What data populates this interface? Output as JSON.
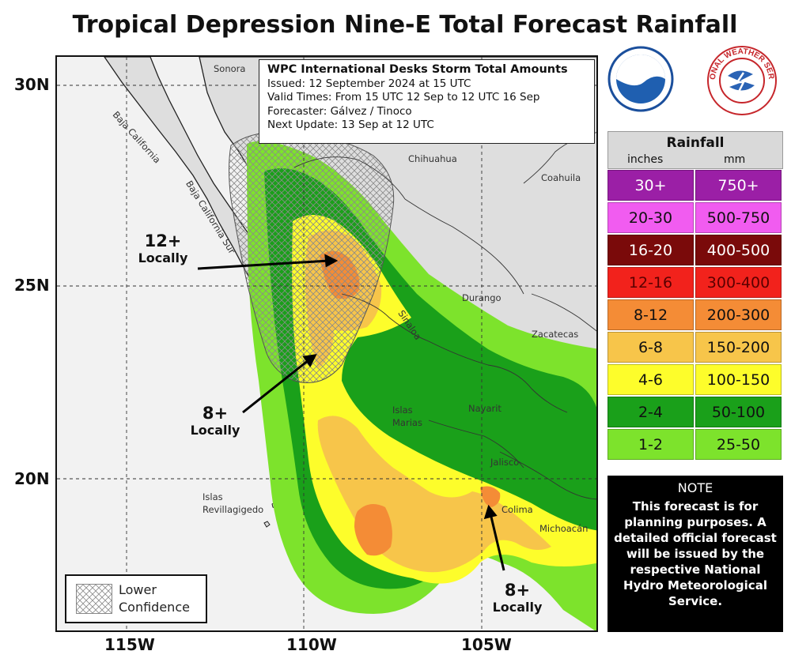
{
  "title": "Tropical Depression Nine-E Total Forecast Rainfall",
  "info": {
    "title": "WPC International Desks Storm Total Amounts",
    "issued": "Issued:  12 September 2024 at 15 UTC",
    "valid": "Valid Times:  From 15 UTC 12 Sep  to  12 UTC 16 Sep",
    "forecaster": "Forecaster: Gálvez / Tinoco",
    "next_update": "Next Update: 13 Sep at 12 UTC"
  },
  "lat_labels": [
    "30N",
    "25N",
    "20N"
  ],
  "lon_labels": [
    "115W",
    "110W",
    "105W"
  ],
  "places": {
    "sonora": "Sonora",
    "baja_california": "Baja California",
    "baja_california_sur": "Baja California Sur",
    "chihuahua": "Chihuahua",
    "coahuila": "Coahuila",
    "durango": "Durango",
    "sinaloa": "Sinaloa",
    "zacatecas": "Zacatecas",
    "nayarit": "Nayarit",
    "islas_marias_1": "Islas",
    "islas_marias_2": "Marias",
    "jalisco": "Jalisco",
    "colima": "Colima",
    "michoacan": "Michoacán",
    "islas_revillagigedo_1": "Islas",
    "islas_revillagigedo_2": "Revillagigedo"
  },
  "callouts": [
    {
      "amount": "12+",
      "locally": "Locally"
    },
    {
      "amount": "8+",
      "locally": "Locally"
    },
    {
      "amount": "8+",
      "locally": "Locally"
    }
  ],
  "confidence_legend": {
    "line1": "Lower",
    "line2": "Confidence"
  },
  "legend": {
    "title": "Rainfall",
    "inches_label": "inches",
    "mm_label": "mm",
    "rows": [
      {
        "inches": "30+",
        "mm": "750+",
        "color": "#9b1fa6",
        "text_color": "#ffffff"
      },
      {
        "inches": "20-30",
        "mm": "500-750",
        "color": "#f15cf0",
        "text_color": "#111111"
      },
      {
        "inches": "16-20",
        "mm": "400-500",
        "color": "#7a0a0a",
        "text_color": "#ffffff"
      },
      {
        "inches": "12-16",
        "mm": "300-400",
        "color": "#f2221c",
        "text_color": "#5a0000"
      },
      {
        "inches": "8-12",
        "mm": "200-300",
        "color": "#f48c36",
        "text_color": "#111111"
      },
      {
        "inches": "6-8",
        "mm": "150-200",
        "color": "#f7c54a",
        "text_color": "#111111"
      },
      {
        "inches": "4-6",
        "mm": "100-150",
        "color": "#fdfd2b",
        "text_color": "#111111"
      },
      {
        "inches": "2-4",
        "mm": "50-100",
        "color": "#1aa01a",
        "text_color": "#111111"
      },
      {
        "inches": "1-2",
        "mm": "25-50",
        "color": "#7de32c",
        "text_color": "#111111"
      }
    ]
  },
  "note": {
    "title": "NOTE",
    "body": "This forecast is for planning purposes. A detailed official forecast will be issued by the respective National Hydro Meteorological Service."
  },
  "logos": {
    "noaa": "NOAA",
    "nws_text": "NATIONAL WEATHER SERVICE"
  },
  "colors": {
    "band_1_2": "#7de32c",
    "band_2_4": "#1aa01a",
    "band_4_6": "#fdfd2b",
    "band_6_8": "#f7c54a",
    "band_8_12": "#f48c36",
    "land": "#dedede",
    "ocean": "#f2f2f2"
  }
}
